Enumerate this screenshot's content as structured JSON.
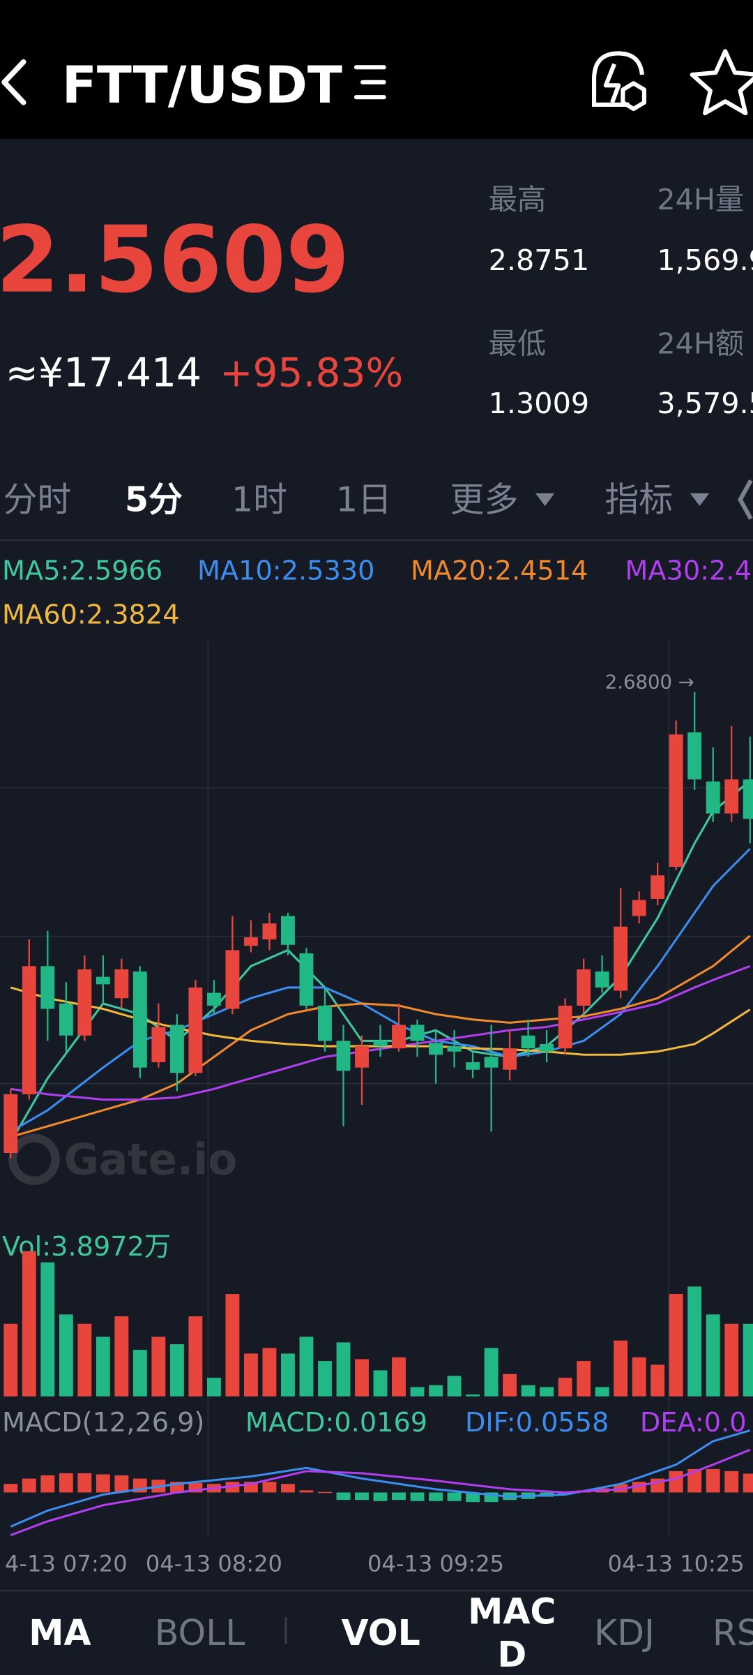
{
  "header": {
    "title": "FTT/USDT"
  },
  "ticker": {
    "price": "2.5609",
    "cny": "≈¥17.414",
    "change": "+95.83%"
  },
  "stats": [
    {
      "label": "最高",
      "value": "2.8751"
    },
    {
      "label": "24H量",
      "value": "1,569.9"
    },
    {
      "label": "最低",
      "value": "1.3009"
    },
    {
      "label": "24H额",
      "value": "3,579.5"
    }
  ],
  "tabs": [
    "分时",
    "5分",
    "1时",
    "1日",
    "更多",
    "指标"
  ],
  "watermark": "Gate.io",
  "indicator_tabs": [
    "MA",
    "BOLL",
    "VOL",
    "MACD",
    "KDJ",
    "RS"
  ],
  "chart_data": [
    {
      "type": "candlestick",
      "up_color": "#e8453c",
      "down_color": "#22b886",
      "ylim": [
        2.178,
        2.728
      ],
      "open": [
        2.248,
        2.303,
        2.423,
        2.388,
        2.358,
        2.413,
        2.393,
        2.418,
        2.333,
        2.368,
        2.323,
        2.398,
        2.383,
        2.442,
        2.448,
        2.47,
        2.435,
        2.386,
        2.353,
        2.328,
        2.353,
        2.346,
        2.368,
        2.351,
        2.348,
        2.333,
        2.338,
        2.326,
        2.358,
        2.35,
        2.346,
        2.386,
        2.418,
        2.4,
        2.47,
        2.486,
        2.516,
        2.642,
        2.596,
        2.566,
        2.598
      ],
      "high": [
        2.308,
        2.448,
        2.456,
        2.408,
        2.433,
        2.433,
        2.43,
        2.423,
        2.388,
        2.378,
        2.41,
        2.41,
        2.47,
        2.466,
        2.473,
        2.473,
        2.44,
        2.403,
        2.368,
        2.358,
        2.368,
        2.388,
        2.373,
        2.363,
        2.363,
        2.343,
        2.368,
        2.363,
        2.373,
        2.363,
        2.393,
        2.43,
        2.433,
        2.496,
        2.493,
        2.52,
        2.653,
        2.68,
        2.628,
        2.648,
        2.638
      ],
      "low": [
        2.243,
        2.298,
        2.353,
        2.343,
        2.353,
        2.388,
        2.383,
        2.318,
        2.328,
        2.306,
        2.32,
        2.378,
        2.378,
        2.436,
        2.438,
        2.433,
        2.383,
        2.343,
        2.273,
        2.293,
        2.338,
        2.343,
        2.338,
        2.313,
        2.328,
        2.318,
        2.268,
        2.316,
        2.338,
        2.333,
        2.34,
        2.378,
        2.398,
        2.393,
        2.463,
        2.48,
        2.513,
        2.588,
        2.558,
        2.558,
        2.538
      ],
      "close": [
        2.303,
        2.423,
        2.383,
        2.358,
        2.42,
        2.406,
        2.42,
        2.328,
        2.366,
        2.323,
        2.403,
        2.386,
        2.438,
        2.45,
        2.463,
        2.443,
        2.386,
        2.353,
        2.325,
        2.348,
        2.348,
        2.368,
        2.353,
        2.34,
        2.343,
        2.326,
        2.328,
        2.346,
        2.346,
        2.343,
        2.386,
        2.42,
        2.403,
        2.46,
        2.485,
        2.508,
        2.64,
        2.598,
        2.566,
        2.598,
        2.5609
      ],
      "categories": [
        null,
        null,
        null,
        "4-13 07:20",
        null,
        null,
        null,
        null,
        null,
        null,
        null,
        "04-13 08:20",
        null,
        null,
        null,
        null,
        null,
        null,
        null,
        null,
        null,
        null,
        null,
        "04-13 09:25",
        null,
        null,
        null,
        null,
        null,
        null,
        null,
        null,
        null,
        null,
        null,
        null,
        "04-13 10:25",
        null,
        null,
        null,
        null
      ],
      "max_label": {
        "value": 2.68,
        "label": "2.6800 →"
      },
      "series": [
        {
          "name": "MA5:2.5966",
          "color": "#3fc8a0",
          "x": [
            0,
            2,
            5,
            7,
            9,
            11,
            13,
            15,
            17,
            19,
            21,
            23,
            25,
            27,
            29,
            31,
            33,
            35,
            37,
            38,
            40
          ],
          "values": [
            2.258,
            2.318,
            2.388,
            2.378,
            2.353,
            2.383,
            2.423,
            2.438,
            2.403,
            2.353,
            2.353,
            2.363,
            2.343,
            2.338,
            2.348,
            2.378,
            2.413,
            2.468,
            2.538,
            2.568,
            2.5966
          ]
        },
        {
          "name": "MA10:2.5330",
          "color": "#3b8df0",
          "x": [
            0,
            2,
            5,
            7,
            9,
            11,
            13,
            15,
            17,
            19,
            21,
            23,
            25,
            27,
            29,
            31,
            33,
            35,
            37,
            38,
            40
          ],
          "values": [
            2.268,
            2.288,
            2.328,
            2.353,
            2.363,
            2.378,
            2.393,
            2.403,
            2.403,
            2.388,
            2.368,
            2.353,
            2.348,
            2.338,
            2.343,
            2.353,
            2.378,
            2.423,
            2.473,
            2.498,
            2.533
          ]
        },
        {
          "name": "MA20:2.4514",
          "color": "#f08a2c",
          "x": [
            0,
            2,
            5,
            7,
            9,
            11,
            13,
            15,
            17,
            19,
            21,
            23,
            25,
            27,
            29,
            31,
            33,
            35,
            37,
            38,
            40
          ],
          "values": [
            2.263,
            2.273,
            2.288,
            2.298,
            2.313,
            2.338,
            2.363,
            2.378,
            2.385,
            2.388,
            2.386,
            2.378,
            2.373,
            2.37,
            2.373,
            2.376,
            2.383,
            2.393,
            2.413,
            2.423,
            2.4514
          ]
        },
        {
          "name": "MA30:2.4",
          "color": "#b13ff0",
          "x": [
            0,
            2,
            5,
            7,
            9,
            11,
            13,
            15,
            17,
            19,
            21,
            23,
            25,
            27,
            29,
            31,
            33,
            35,
            37,
            38,
            40
          ],
          "values": [
            2.308,
            2.303,
            2.298,
            2.298,
            2.3,
            2.308,
            2.318,
            2.328,
            2.338,
            2.343,
            2.348,
            2.353,
            2.358,
            2.363,
            2.366,
            2.373,
            2.38,
            2.388,
            2.403,
            2.41,
            2.423
          ]
        },
        {
          "name": "MA60:2.3824",
          "color": "#f0b83c",
          "x": [
            0,
            2,
            5,
            7,
            9,
            11,
            13,
            15,
            17,
            19,
            21,
            23,
            25,
            27,
            29,
            31,
            33,
            35,
            37,
            38,
            40
          ],
          "values": [
            2.403,
            2.393,
            2.383,
            2.373,
            2.365,
            2.358,
            2.353,
            2.35,
            2.348,
            2.348,
            2.348,
            2.348,
            2.346,
            2.345,
            2.343,
            2.34,
            2.34,
            2.343,
            2.35,
            2.36,
            2.3824
          ]
        }
      ]
    },
    {
      "type": "bar",
      "title": "Vol:3.8972万",
      "title_color": "#3fc8a0",
      "ylim": [
        0,
        8.2
      ],
      "values": [
        3.9,
        7.8,
        7.2,
        4.4,
        3.9,
        3.2,
        4.3,
        2.5,
        3.2,
        2.8,
        4.3,
        1.0,
        5.5,
        2.3,
        2.6,
        2.3,
        3.2,
        1.9,
        2.9,
        2.0,
        1.4,
        2.1,
        0.5,
        0.6,
        1.1,
        0.1,
        2.6,
        1.2,
        0.6,
        0.5,
        1.0,
        1.9,
        0.5,
        3.0,
        2.1,
        1.7,
        5.5,
        5.9,
        4.4,
        3.9,
        3.8972
      ]
    },
    {
      "type": "macd",
      "title": "MACD(12,26,9)",
      "ylim": [
        -0.0403,
        0.0605
      ],
      "histogram": {
        "name": "MACD:0.0169",
        "color": "#3fc8a0",
        "values": [
          0.0077,
          0.0125,
          0.0154,
          0.0173,
          0.0173,
          0.0163,
          0.0154,
          0.0125,
          0.0115,
          0.0096,
          0.0086,
          0.0077,
          0.0096,
          0.0096,
          0.0096,
          0.0077,
          0.0019,
          0.0005,
          -0.0067,
          -0.0067,
          -0.0077,
          -0.0067,
          -0.0077,
          -0.0077,
          -0.0077,
          -0.0086,
          -0.0086,
          -0.0067,
          -0.0058,
          -0.0038,
          -0.0019,
          0.0019,
          0.0038,
          0.0077,
          0.0096,
          0.0125,
          0.0192,
          0.0211,
          0.0211,
          0.0192,
          0.0169
        ]
      },
      "series": [
        {
          "name": "DIF:0.0558",
          "color": "#3b8df0",
          "x": [
            0,
            2,
            5,
            9,
            13,
            16,
            19,
            23,
            27,
            30,
            33,
            36,
            38,
            40
          ],
          "values": [
            -0.0307,
            -0.0163,
            -0.0019,
            0.0077,
            0.0144,
            0.0221,
            0.0125,
            0.0029,
            -0.0038,
            -0.0019,
            0.0077,
            0.025,
            0.0461,
            0.0558
          ]
        },
        {
          "name": "DEA:0.0",
          "color": "#b13ff0",
          "x": [
            0,
            2,
            5,
            9,
            13,
            16,
            19,
            23,
            27,
            30,
            33,
            36,
            38,
            40
          ],
          "values": [
            -0.0384,
            -0.0259,
            -0.0115,
            0,
            0.0077,
            0.0192,
            0.0173,
            0.0106,
            0.0029,
            0,
            0.0029,
            0.0125,
            0.025,
            0.0384
          ]
        }
      ]
    }
  ]
}
